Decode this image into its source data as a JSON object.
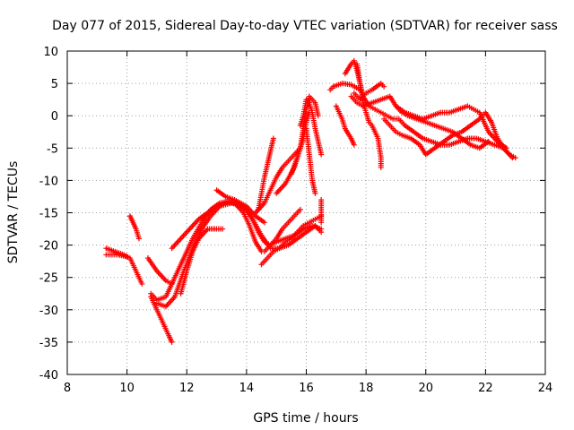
{
  "chart_data": {
    "type": "scatter",
    "title": "Day 077 of 2015, Sidereal Day-to-day VTEC variation (SDTVAR) for receiver sass",
    "xlabel": "GPS time / hours",
    "ylabel": "SDTVAR / TECUs",
    "xlim": [
      8,
      24
    ],
    "ylim": [
      -40,
      10
    ],
    "xticks": [
      8,
      10,
      12,
      14,
      16,
      18,
      20,
      22,
      24
    ],
    "yticks": [
      10,
      5,
      0,
      -5,
      -10,
      -15,
      -20,
      -25,
      -30,
      -35,
      -40
    ],
    "xtick_labels": [
      "8",
      "10",
      "12",
      "14",
      "16",
      "18",
      "20",
      "22",
      "24"
    ],
    "ytick_labels": [
      "10",
      "5",
      "0",
      "-5",
      "-10",
      "-15",
      "-20",
      "-25",
      "-30",
      "-35",
      "-40"
    ],
    "grid": true,
    "marker": "+",
    "marker_color": "#ff0000",
    "series": [
      {
        "points": [
          [
            9.3,
            -20.5
          ],
          [
            9.6,
            -21.0
          ],
          [
            9.9,
            -21.5
          ],
          [
            10.1,
            -22.0
          ],
          [
            10.3,
            -24.0
          ],
          [
            10.5,
            -26.0
          ]
        ]
      },
      {
        "points": [
          [
            9.3,
            -21.5
          ],
          [
            9.7,
            -21.5
          ],
          [
            10.0,
            -21.8
          ]
        ]
      },
      {
        "points": [
          [
            10.1,
            -15.5
          ],
          [
            10.2,
            -16.5
          ],
          [
            10.3,
            -17.5
          ],
          [
            10.4,
            -19.0
          ]
        ]
      },
      {
        "points": [
          [
            10.7,
            -22.0
          ],
          [
            11.0,
            -24.0
          ],
          [
            11.3,
            -25.5
          ],
          [
            11.5,
            -26.0
          ]
        ]
      },
      {
        "points": [
          [
            10.8,
            -28.0
          ],
          [
            11.0,
            -30.0
          ],
          [
            11.2,
            -32.0
          ],
          [
            11.4,
            -34.0
          ],
          [
            11.5,
            -35.0
          ]
        ]
      },
      {
        "points": [
          [
            10.8,
            -27.5
          ],
          [
            11.0,
            -28.5
          ],
          [
            11.3,
            -28.0
          ],
          [
            11.6,
            -25.0
          ],
          [
            11.9,
            -22.0
          ],
          [
            12.2,
            -19.0
          ],
          [
            12.5,
            -16.5
          ],
          [
            12.8,
            -14.5
          ],
          [
            13.1,
            -13.5
          ],
          [
            13.4,
            -13.2
          ],
          [
            13.7,
            -13.5
          ],
          [
            14.0,
            -14.5
          ],
          [
            14.2,
            -16.0
          ],
          [
            14.4,
            -18.0
          ],
          [
            14.6,
            -19.5
          ],
          [
            14.8,
            -20.0
          ],
          [
            15.0,
            -19.5
          ],
          [
            15.3,
            -19.0
          ],
          [
            15.6,
            -18.5
          ],
          [
            15.9,
            -17.5
          ],
          [
            16.2,
            -17.0
          ],
          [
            16.5,
            -17.5
          ]
        ]
      },
      {
        "points": [
          [
            11.0,
            -29.0
          ],
          [
            11.3,
            -29.5
          ],
          [
            11.6,
            -28.0
          ],
          [
            11.9,
            -24.0
          ],
          [
            12.2,
            -20.5
          ],
          [
            12.5,
            -17.5
          ],
          [
            12.8,
            -15.5
          ],
          [
            13.1,
            -14.0
          ],
          [
            13.5,
            -13.5
          ],
          [
            13.9,
            -14.0
          ],
          [
            14.2,
            -16.0
          ],
          [
            14.5,
            -18.5
          ],
          [
            14.8,
            -20.5
          ],
          [
            15.1,
            -20.5
          ],
          [
            15.4,
            -20.0
          ],
          [
            15.7,
            -19.0
          ],
          [
            16.0,
            -18.0
          ],
          [
            16.3,
            -17.0
          ],
          [
            16.5,
            -18.0
          ]
        ]
      },
      {
        "points": [
          [
            11.5,
            -20.5
          ],
          [
            11.8,
            -19.0
          ],
          [
            12.1,
            -17.5
          ],
          [
            12.4,
            -16.0
          ],
          [
            12.7,
            -15.0
          ],
          [
            13.0,
            -14.0
          ],
          [
            13.3,
            -13.5
          ],
          [
            13.6,
            -13.5
          ],
          [
            13.9,
            -15.0
          ],
          [
            14.1,
            -17.0
          ],
          [
            14.3,
            -19.5
          ],
          [
            14.5,
            -21.0
          ]
        ]
      },
      {
        "points": [
          [
            11.8,
            -27.5
          ],
          [
            12.0,
            -24.0
          ],
          [
            12.2,
            -21.0
          ],
          [
            12.4,
            -19.0
          ],
          [
            12.7,
            -17.5
          ],
          [
            13.0,
            -17.5
          ],
          [
            13.2,
            -17.5
          ]
        ]
      },
      {
        "points": [
          [
            13.0,
            -11.5
          ],
          [
            13.3,
            -12.5
          ],
          [
            13.6,
            -13.0
          ],
          [
            14.0,
            -14.0
          ],
          [
            14.3,
            -15.5
          ],
          [
            14.6,
            -16.5
          ]
        ]
      },
      {
        "points": [
          [
            14.3,
            -15.0
          ],
          [
            14.6,
            -13.5
          ],
          [
            14.8,
            -11.5
          ],
          [
            15.0,
            -9.5
          ],
          [
            15.2,
            -8.0
          ],
          [
            15.4,
            -7.0
          ],
          [
            15.6,
            -6.0
          ],
          [
            15.8,
            -5.0
          ],
          [
            15.9,
            -3.5
          ]
        ]
      },
      {
        "points": [
          [
            14.4,
            -14.5
          ],
          [
            14.5,
            -12.0
          ],
          [
            14.6,
            -9.5
          ],
          [
            14.7,
            -7.5
          ],
          [
            14.8,
            -5.5
          ],
          [
            14.9,
            -3.5
          ]
        ]
      },
      {
        "points": [
          [
            14.5,
            -23.0
          ],
          [
            14.7,
            -22.0
          ],
          [
            14.9,
            -21.0
          ],
          [
            15.1,
            -20.5
          ],
          [
            15.3,
            -19.5
          ],
          [
            15.5,
            -19.0
          ],
          [
            15.7,
            -18.0
          ],
          [
            15.9,
            -17.0
          ],
          [
            16.1,
            -16.5
          ],
          [
            16.3,
            -16.0
          ],
          [
            16.5,
            -15.5
          ]
        ]
      },
      {
        "points": [
          [
            14.6,
            -21.0
          ],
          [
            14.8,
            -20.0
          ],
          [
            15.0,
            -19.0
          ],
          [
            15.2,
            -17.5
          ],
          [
            15.4,
            -16.5
          ],
          [
            15.6,
            -15.5
          ],
          [
            15.8,
            -14.5
          ]
        ]
      },
      {
        "points": [
          [
            15.0,
            -12.0
          ],
          [
            15.3,
            -10.5
          ],
          [
            15.6,
            -8.0
          ],
          [
            15.8,
            -5.0
          ],
          [
            15.9,
            -2.0
          ],
          [
            16.0,
            1.0
          ],
          [
            16.1,
            3.0
          ],
          [
            16.3,
            2.0
          ],
          [
            16.4,
            0.0
          ]
        ]
      },
      {
        "points": [
          [
            15.8,
            -1.5
          ],
          [
            15.9,
            0.0
          ],
          [
            16.0,
            2.5
          ],
          [
            16.1,
            2.0
          ],
          [
            16.2,
            0.5
          ],
          [
            16.3,
            -2.0
          ],
          [
            16.4,
            -4.0
          ],
          [
            16.5,
            -6.0
          ]
        ]
      },
      {
        "points": [
          [
            15.5,
            -9.0
          ],
          [
            15.7,
            -6.5
          ],
          [
            15.9,
            -3.5
          ],
          [
            16.0,
            -1.0
          ],
          [
            16.1,
            0.5
          ]
        ]
      },
      {
        "points": [
          [
            16.0,
            -2.0
          ],
          [
            16.1,
            -6.0
          ],
          [
            16.2,
            -10.0
          ],
          [
            16.3,
            -12.0
          ]
        ]
      },
      {
        "points": [
          [
            16.5,
            -13.0
          ],
          [
            16.5,
            -15.0
          ],
          [
            16.5,
            -16.5
          ]
        ]
      },
      {
        "points": [
          [
            16.8,
            4.0
          ],
          [
            16.9,
            4.5
          ],
          [
            17.2,
            5.0
          ],
          [
            17.5,
            4.8
          ],
          [
            17.8,
            4.0
          ]
        ]
      },
      {
        "points": [
          [
            17.0,
            1.5
          ],
          [
            17.2,
            -0.5
          ],
          [
            17.3,
            -2.0
          ],
          [
            17.5,
            -3.5
          ],
          [
            17.6,
            -4.5
          ]
        ]
      },
      {
        "points": [
          [
            17.3,
            6.5
          ],
          [
            17.5,
            8.0
          ],
          [
            17.6,
            8.5
          ],
          [
            17.7,
            7.0
          ],
          [
            17.8,
            5.0
          ],
          [
            17.9,
            3.0
          ],
          [
            18.1,
            1.5
          ],
          [
            18.3,
            1.0
          ],
          [
            18.5,
            0.5
          ],
          [
            18.7,
            0.0
          ],
          [
            18.9,
            -0.5
          ],
          [
            19.1,
            -0.5
          ],
          [
            19.3,
            -1.5
          ],
          [
            19.6,
            -2.5
          ],
          [
            19.9,
            -3.5
          ],
          [
            20.2,
            -4.0
          ],
          [
            20.5,
            -4.5
          ],
          [
            20.8,
            -4.5
          ],
          [
            21.1,
            -4.0
          ],
          [
            21.4,
            -3.5
          ],
          [
            21.7,
            -3.5
          ],
          [
            22.0,
            -4.0
          ],
          [
            22.3,
            -4.5
          ],
          [
            22.6,
            -5.0
          ],
          [
            22.9,
            -6.5
          ]
        ]
      },
      {
        "points": [
          [
            17.5,
            3.0
          ],
          [
            17.7,
            2.0
          ],
          [
            17.9,
            1.5
          ],
          [
            18.2,
            2.0
          ],
          [
            18.5,
            2.5
          ],
          [
            18.8,
            3.0
          ],
          [
            19.0,
            1.5
          ],
          [
            19.2,
            0.5
          ],
          [
            19.4,
            0.0
          ],
          [
            19.7,
            -0.5
          ],
          [
            20.0,
            -1.0
          ],
          [
            20.3,
            -1.5
          ],
          [
            20.6,
            -2.0
          ],
          [
            20.9,
            -2.5
          ],
          [
            21.2,
            -3.5
          ],
          [
            21.5,
            -4.5
          ],
          [
            21.8,
            -5.0
          ],
          [
            22.1,
            -4.0
          ]
        ]
      },
      {
        "points": [
          [
            17.7,
            8.0
          ],
          [
            17.8,
            5.0
          ],
          [
            17.9,
            2.0
          ],
          [
            18.0,
            0.5
          ],
          [
            18.1,
            -1.0
          ],
          [
            18.2,
            -1.5
          ],
          [
            18.4,
            -3.5
          ],
          [
            18.5,
            -6.5
          ],
          [
            18.5,
            -8.0
          ]
        ]
      },
      {
        "points": [
          [
            17.6,
            3.5
          ],
          [
            17.8,
            2.5
          ],
          [
            18.0,
            3.5
          ],
          [
            18.2,
            4.0
          ],
          [
            18.5,
            5.0
          ],
          [
            18.6,
            4.5
          ]
        ]
      },
      {
        "points": [
          [
            18.6,
            -0.5
          ],
          [
            18.8,
            -1.5
          ],
          [
            19.0,
            -2.5
          ],
          [
            19.2,
            -3.0
          ],
          [
            19.5,
            -3.5
          ],
          [
            19.8,
            -4.5
          ],
          [
            20.0,
            -6.0
          ],
          [
            20.3,
            -5.0
          ],
          [
            20.6,
            -4.0
          ],
          [
            20.9,
            -3.0
          ],
          [
            21.2,
            -2.5
          ],
          [
            21.5,
            -1.5
          ],
          [
            21.8,
            -0.5
          ],
          [
            22.0,
            0.5
          ],
          [
            22.2,
            -1.0
          ],
          [
            22.4,
            -3.5
          ],
          [
            22.6,
            -5.0
          ],
          [
            22.8,
            -6.0
          ],
          [
            23.0,
            -6.5
          ]
        ]
      },
      {
        "points": [
          [
            19.0,
            1.5
          ],
          [
            19.3,
            0.5
          ],
          [
            19.6,
            0.0
          ],
          [
            19.9,
            -0.5
          ],
          [
            20.2,
            0.0
          ],
          [
            20.5,
            0.5
          ],
          [
            20.8,
            0.5
          ],
          [
            21.1,
            1.0
          ],
          [
            21.4,
            1.5
          ],
          [
            21.6,
            1.0
          ],
          [
            21.8,
            0.5
          ],
          [
            22.1,
            -2.5
          ],
          [
            22.4,
            -4.0
          ],
          [
            22.7,
            -5.0
          ]
        ]
      }
    ]
  }
}
